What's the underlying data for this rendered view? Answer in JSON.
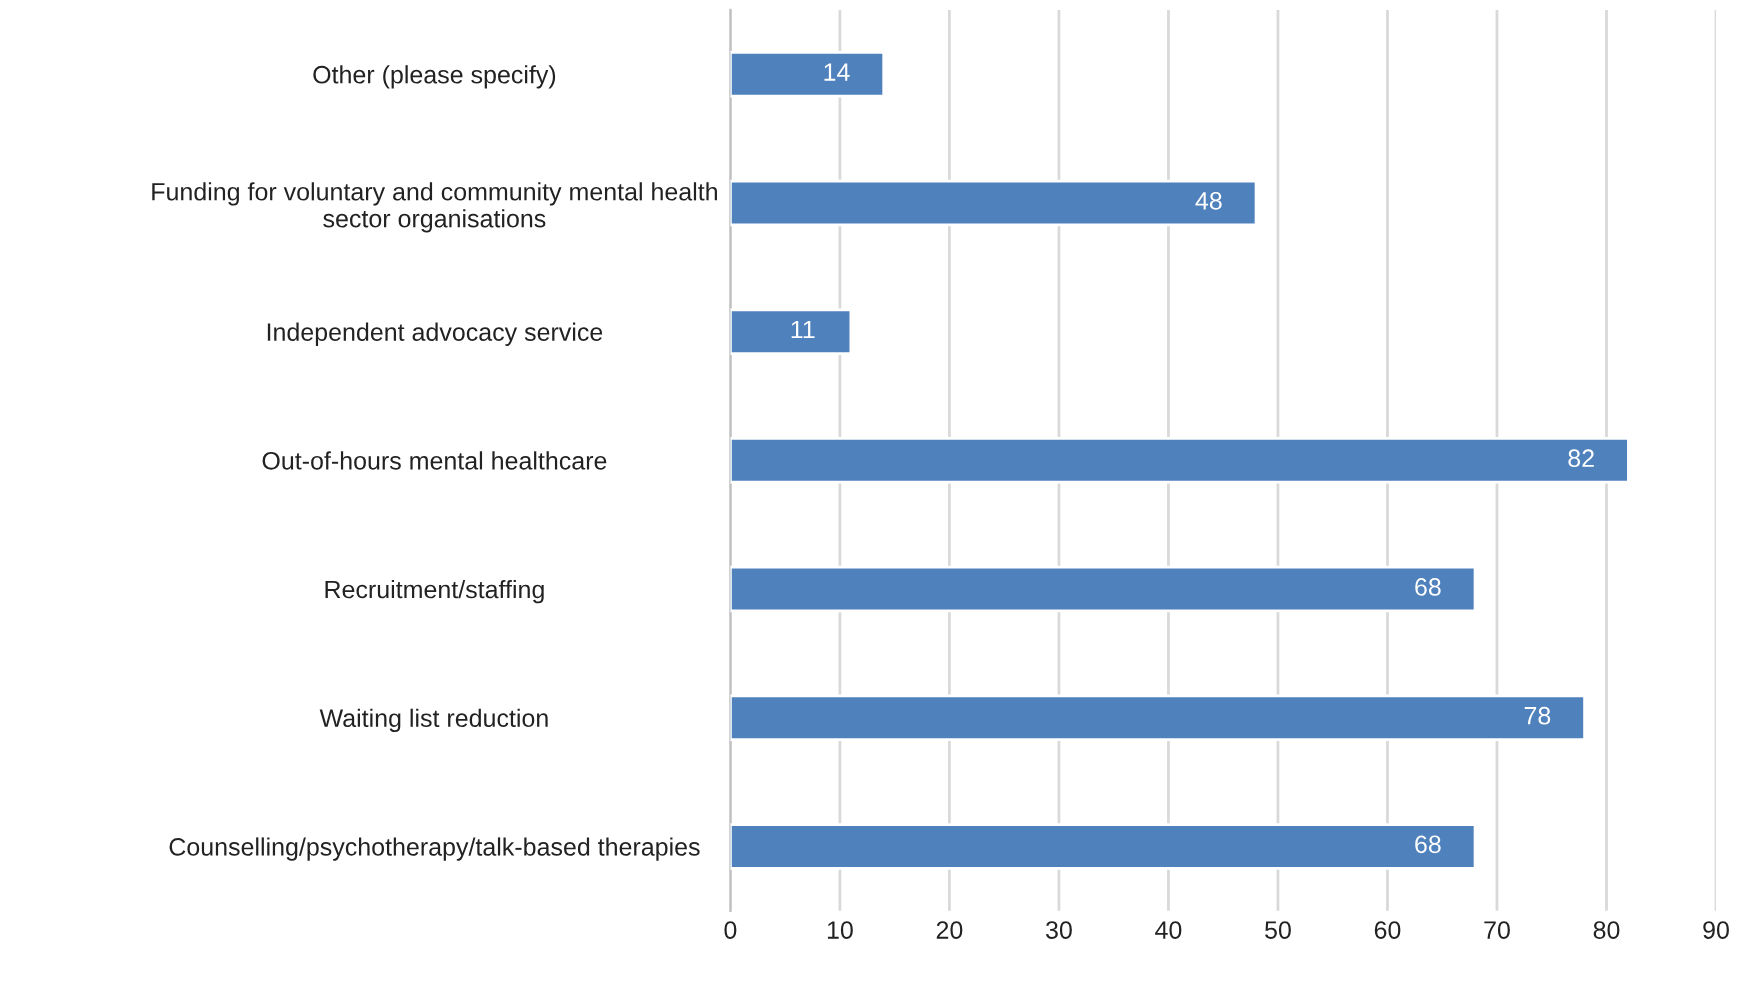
{
  "chart_data": {
    "type": "bar",
    "orientation": "horizontal",
    "categories": [
      "Other (please specify)",
      "Funding for voluntary and community mental health sector organisations",
      "Independent advocacy service",
      "Out-of-hours mental healthcare",
      "Recruitment/staffing",
      "Waiting list reduction",
      "Counselling/psychotherapy/talk-based therapies"
    ],
    "values": [
      14,
      48,
      11,
      82,
      68,
      78,
      68
    ],
    "color": "#4f81bd",
    "data_labels": true,
    "xlim": [
      0,
      90
    ],
    "xticks": [
      0,
      10,
      20,
      30,
      40,
      50,
      60,
      70,
      80,
      90
    ],
    "grid": "x",
    "legend": false
  }
}
